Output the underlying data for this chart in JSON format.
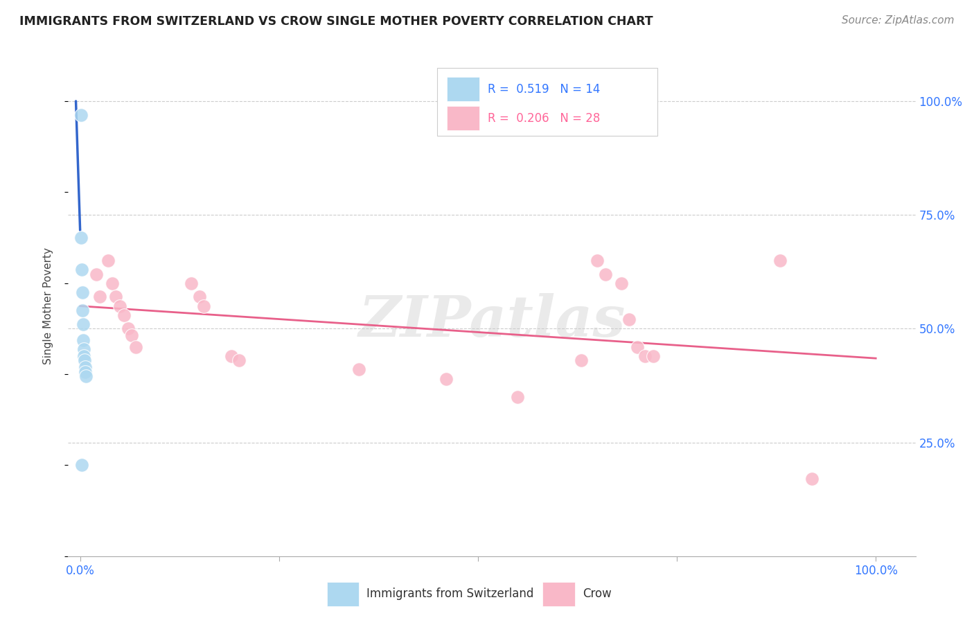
{
  "title": "IMMIGRANTS FROM SWITZERLAND VS CROW SINGLE MOTHER POVERTY CORRELATION CHART",
  "source": "Source: ZipAtlas.com",
  "ylabel": "Single Mother Poverty",
  "blue_color": "#ADD8F0",
  "blue_line_color": "#3366CC",
  "pink_color": "#F9B8C8",
  "pink_line_color": "#E8608A",
  "watermark": "ZIPatlas",
  "background_color": "#ffffff",
  "grid_color": "#cccccc",
  "swiss_x": [
    0.1,
    0.15,
    0.2,
    0.25,
    0.3,
    0.35,
    0.4,
    0.45,
    0.5,
    0.55,
    0.6,
    0.65,
    0.7,
    0.2
  ],
  "swiss_y": [
    97.0,
    70.0,
    63.0,
    58.0,
    54.0,
    51.0,
    47.5,
    45.5,
    44.0,
    43.0,
    41.5,
    40.5,
    39.5,
    20.0
  ],
  "crow_x": [
    2.0,
    2.5,
    3.5,
    4.0,
    4.5,
    5.0,
    5.5,
    6.0,
    6.5,
    7.0,
    14.0,
    15.0,
    15.5,
    19.0,
    20.0,
    35.0,
    46.0,
    55.0,
    63.0,
    65.0,
    66.0,
    68.0,
    69.0,
    70.0,
    71.0,
    72.0,
    88.0,
    92.0
  ],
  "crow_y": [
    62.0,
    57.0,
    65.0,
    60.0,
    57.0,
    55.0,
    53.0,
    50.0,
    48.5,
    46.0,
    60.0,
    57.0,
    55.0,
    44.0,
    43.0,
    41.0,
    39.0,
    35.0,
    43.0,
    65.0,
    62.0,
    60.0,
    52.0,
    46.0,
    44.0,
    44.0,
    65.0,
    17.0
  ],
  "xlim": [
    -1.5,
    105
  ],
  "ylim": [
    0,
    110
  ],
  "yticks_right": [
    25.0,
    50.0,
    75.0,
    100.0
  ],
  "xtick_positions": [
    0,
    25,
    50,
    75,
    100
  ],
  "xtick_labels": [
    "0.0%",
    "",
    "",
    "",
    "100.0%"
  ]
}
